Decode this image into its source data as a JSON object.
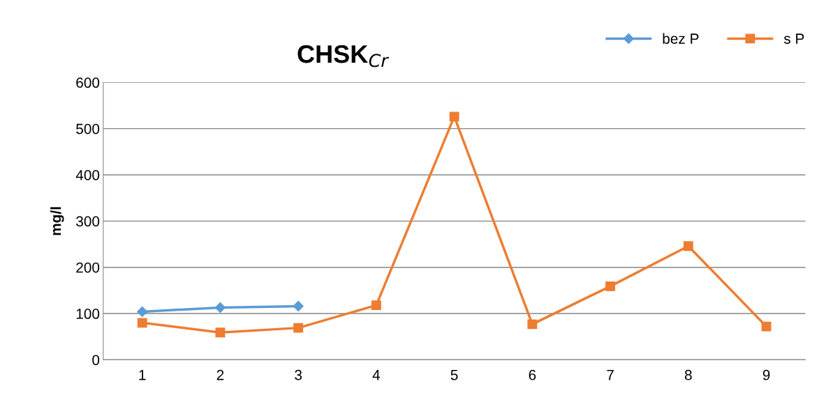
{
  "chart_data": {
    "type": "line",
    "title": "CHSK$_{Cr}$",
    "ylabel": "mg/l",
    "categories": [
      "1",
      "2",
      "3",
      "4",
      "5",
      "6",
      "7",
      "8",
      "9"
    ],
    "series": [
      {
        "name": "bez P",
        "color": "#5b9bd5",
        "marker": "diamond",
        "values": [
          104,
          113,
          116,
          null,
          null,
          null,
          null,
          null,
          null
        ]
      },
      {
        "name": "s P",
        "color": "#ed7d31",
        "marker": "square",
        "values": [
          80,
          59,
          69,
          118,
          526,
          77,
          159,
          246,
          72
        ]
      }
    ],
    "ylim": [
      0,
      600
    ],
    "yticks": [
      0,
      100,
      200,
      300,
      400,
      500,
      600
    ],
    "grid": "y",
    "legend": "top right",
    "line_style": "solid"
  }
}
